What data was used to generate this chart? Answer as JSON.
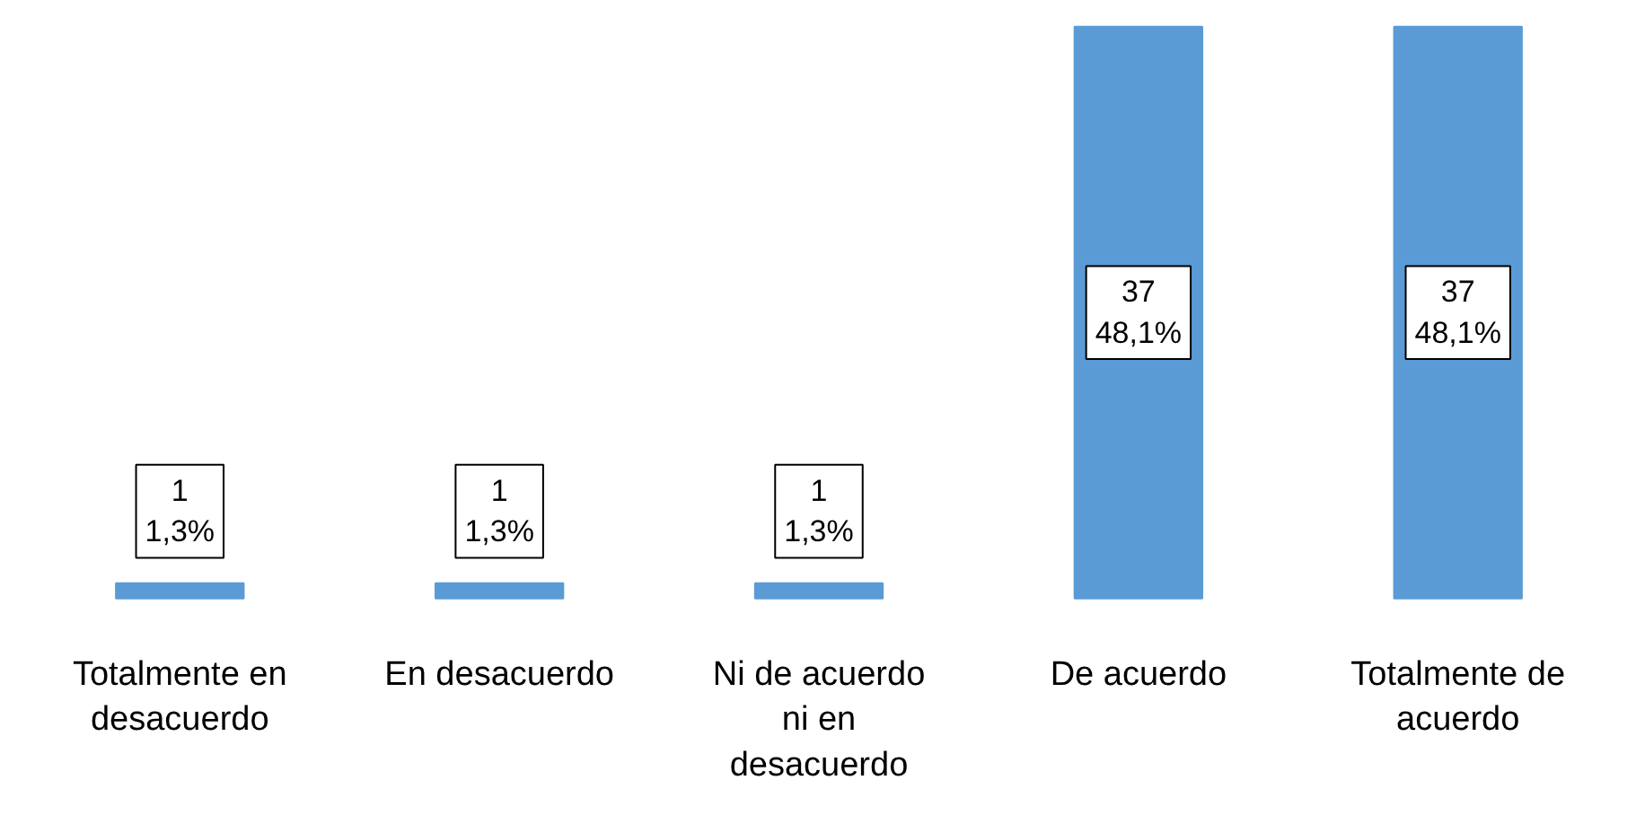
{
  "chart_data": {
    "type": "bar",
    "categories": [
      "Totalmente en\ndesacuerdo",
      "En desacuerdo",
      "Ni de acuerdo\nni en\ndesacuerdo",
      "De acuerdo",
      "Totalmente de\nacuerdo"
    ],
    "values": [
      1,
      1,
      1,
      37,
      37
    ],
    "color": "#5b9bd5",
    "value_labels": [
      "1\n1,3%",
      "1\n1,3%",
      "1\n1,3%",
      "37\n48,1%",
      "37\n48,1%"
    ]
  }
}
